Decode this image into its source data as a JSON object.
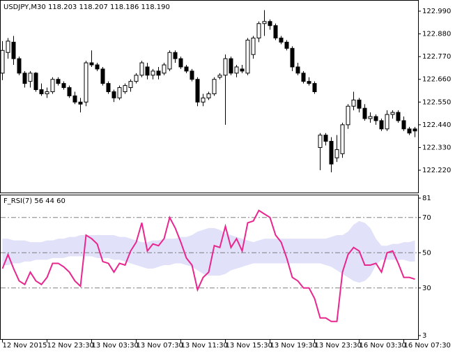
{
  "chart_data": [
    {
      "type": "candlestick",
      "title": "USDJPY,M30  118.203 118.207 118.186 118.190",
      "categories": [
        "12 Nov 2015",
        null,
        null,
        null,
        null,
        null,
        null,
        null,
        "12 Nov 23:30",
        null,
        null,
        null,
        null,
        null,
        null,
        null,
        "13 Nov 03:30",
        null,
        null,
        null,
        null,
        null,
        null,
        null,
        "13 Nov 07:30",
        null,
        null,
        null,
        null,
        null,
        null,
        null,
        "13 Nov 11:30",
        null,
        null,
        null,
        null,
        null,
        null,
        null,
        "13 Nov 15:30",
        null,
        null,
        null,
        null,
        null,
        null,
        null,
        "13 Nov 19:30",
        null,
        null,
        null,
        null,
        null,
        null,
        null,
        "13 Nov 23:30",
        null,
        null,
        null,
        null,
        null,
        null,
        null,
        "16 Nov 03:30",
        null,
        null,
        null,
        null,
        null,
        null,
        null,
        "16 Nov 07:30",
        null,
        null
      ],
      "open": [
        122.69,
        122.79,
        122.84,
        122.76,
        122.69,
        122.65,
        122.69,
        122.61,
        122.59,
        122.6,
        122.66,
        122.64,
        122.62,
        122.58,
        122.55,
        122.55,
        122.74,
        122.73,
        122.71,
        122.64,
        122.6,
        122.57,
        122.6,
        122.62,
        122.65,
        122.68,
        122.72,
        122.68,
        122.7,
        122.69,
        122.71,
        122.79,
        122.76,
        122.72,
        122.7,
        122.66,
        122.55,
        122.57,
        122.59,
        122.67,
        122.68,
        122.76,
        122.69,
        122.71,
        122.69,
        122.78,
        122.86,
        122.93,
        122.94,
        122.92,
        122.86,
        122.84,
        122.81,
        122.72,
        122.69,
        122.65,
        122.64,
        122.33,
        122.39,
        122.36,
        122.28,
        122.3,
        122.44,
        122.53,
        122.56,
        122.52,
        122.47,
        122.48,
        122.46,
        122.42,
        122.49,
        122.5,
        122.46,
        122.42,
        122.42
      ],
      "high": [
        122.845,
        122.86,
        122.87,
        122.77,
        122.7,
        122.7,
        122.695,
        122.64,
        122.62,
        122.67,
        122.67,
        122.65,
        122.63,
        122.6,
        122.57,
        122.75,
        122.8,
        122.74,
        122.72,
        122.65,
        122.61,
        122.63,
        122.64,
        122.66,
        122.69,
        122.75,
        122.74,
        122.71,
        122.72,
        122.74,
        122.8,
        122.8,
        122.77,
        122.73,
        122.71,
        122.67,
        122.59,
        122.6,
        122.67,
        122.69,
        122.78,
        122.77,
        122.73,
        122.73,
        122.86,
        122.87,
        122.94,
        122.995,
        122.95,
        122.93,
        122.87,
        122.85,
        122.82,
        122.74,
        122.7,
        122.67,
        122.65,
        122.4,
        122.4,
        122.38,
        122.39,
        122.45,
        122.54,
        122.6,
        122.57,
        122.54,
        122.5,
        122.49,
        122.47,
        122.51,
        122.51,
        122.51,
        122.48,
        122.43,
        122.43
      ],
      "low": [
        122.656,
        122.76,
        122.73,
        122.68,
        122.62,
        122.62,
        122.6,
        122.58,
        122.57,
        122.59,
        122.63,
        122.61,
        122.57,
        122.54,
        122.5,
        122.53,
        122.72,
        122.7,
        122.63,
        122.59,
        122.55,
        122.56,
        122.59,
        122.6,
        122.64,
        122.67,
        122.66,
        122.66,
        122.66,
        122.68,
        122.7,
        122.74,
        122.71,
        122.69,
        122.65,
        122.53,
        122.53,
        122.56,
        122.58,
        122.66,
        122.44,
        122.68,
        122.67,
        122.69,
        122.68,
        122.76,
        122.84,
        122.87,
        122.9,
        122.85,
        122.83,
        122.8,
        122.7,
        122.68,
        122.64,
        122.63,
        122.59,
        122.22,
        122.34,
        122.21,
        122.26,
        122.28,
        122.42,
        122.51,
        122.5,
        122.46,
        122.45,
        122.44,
        122.41,
        122.41,
        122.47,
        122.45,
        122.41,
        122.39,
        122.38
      ],
      "close": [
        122.8,
        122.845,
        122.76,
        122.69,
        122.64,
        122.69,
        122.61,
        122.59,
        122.6,
        122.66,
        122.64,
        122.62,
        122.58,
        122.55,
        122.54,
        122.74,
        122.73,
        122.71,
        122.64,
        122.6,
        122.57,
        122.62,
        122.63,
        122.65,
        122.68,
        122.74,
        122.68,
        122.7,
        122.68,
        122.73,
        122.79,
        122.76,
        122.72,
        122.7,
        122.66,
        122.55,
        122.57,
        122.59,
        122.66,
        122.68,
        122.76,
        122.69,
        122.72,
        122.7,
        122.85,
        122.86,
        122.93,
        122.94,
        122.92,
        122.86,
        122.84,
        122.81,
        122.72,
        122.69,
        122.65,
        122.64,
        122.6,
        122.39,
        122.36,
        122.25,
        122.32,
        122.44,
        122.53,
        122.56,
        122.52,
        122.47,
        122.48,
        122.46,
        122.42,
        122.49,
        122.5,
        122.46,
        122.42,
        122.4,
        122.41
      ],
      "up_color": "#ffffff",
      "down_color": "#000000",
      "outline_color": "#000000",
      "ylim": [
        122.112,
        123.044
      ],
      "yticks": [
        {
          "value": 122.99,
          "label": "122.990"
        },
        {
          "value": 122.88,
          "label": "122.880"
        },
        {
          "value": 122.77,
          "label": "122.770"
        },
        {
          "value": 122.66,
          "label": "122.660"
        },
        {
          "value": 122.55,
          "label": "122.550"
        },
        {
          "value": 122.44,
          "label": "122.440"
        },
        {
          "value": 122.33,
          "label": "122.330"
        },
        {
          "value": 122.22,
          "label": "122.220"
        }
      ]
    },
    {
      "type": "line",
      "title": "F_RSI(7) 56 44 60",
      "color": "#e8268e",
      "band_color": "#e1e1fa",
      "level_color": "#808080",
      "values": [
        41,
        49,
        41,
        34,
        32,
        39,
        34,
        32,
        36,
        44,
        44,
        42,
        39,
        34,
        31,
        60,
        58,
        55,
        45,
        44,
        39,
        44,
        43,
        51,
        56,
        67,
        51,
        55,
        54,
        58,
        70,
        64,
        56,
        47,
        43,
        29,
        36,
        39,
        54,
        53,
        65,
        53,
        58,
        51,
        67,
        68,
        74,
        72,
        70,
        60,
        56,
        47,
        36,
        34,
        30,
        30,
        24,
        13,
        13,
        11,
        11,
        39,
        49,
        53,
        51,
        43,
        43,
        44,
        39,
        50,
        51,
        44,
        36,
        36,
        35
      ],
      "band_upper": [
        58,
        58,
        57,
        57,
        57,
        56,
        56,
        56,
        57,
        57,
        58,
        58,
        59,
        59,
        60,
        60,
        60,
        60,
        60,
        60,
        60,
        59,
        59,
        58,
        57,
        56,
        56,
        57,
        57,
        58,
        58,
        58,
        59,
        59,
        60,
        62,
        63,
        64,
        64,
        63,
        61,
        60,
        59,
        58,
        57,
        56,
        57,
        58,
        58,
        58,
        58,
        58,
        58,
        58,
        58,
        58,
        58,
        58,
        58,
        59,
        60,
        60,
        62,
        66,
        68,
        67,
        64,
        58,
        54,
        54,
        55,
        55,
        56,
        56,
        57
      ],
      "band_lower": [
        43,
        43,
        44,
        44,
        45,
        45,
        46,
        46,
        46,
        47,
        47,
        47,
        48,
        48,
        48,
        48,
        48,
        47,
        47,
        47,
        46,
        46,
        45,
        44,
        43,
        42,
        41,
        41,
        42,
        43,
        43,
        44,
        44,
        43,
        42,
        40,
        38,
        37,
        37,
        37,
        38,
        40,
        41,
        42,
        43,
        44,
        44,
        44,
        44,
        44,
        44,
        44,
        44,
        44,
        44,
        44,
        44,
        44,
        43,
        42,
        40,
        38,
        36,
        34,
        33,
        34,
        37,
        43,
        46,
        46,
        46,
        46,
        46,
        45,
        45
      ],
      "levels": [
        70,
        50,
        30
      ],
      "ylim": [
        3,
        81
      ],
      "yticks": [
        81,
        70,
        50,
        30,
        3
      ]
    }
  ]
}
